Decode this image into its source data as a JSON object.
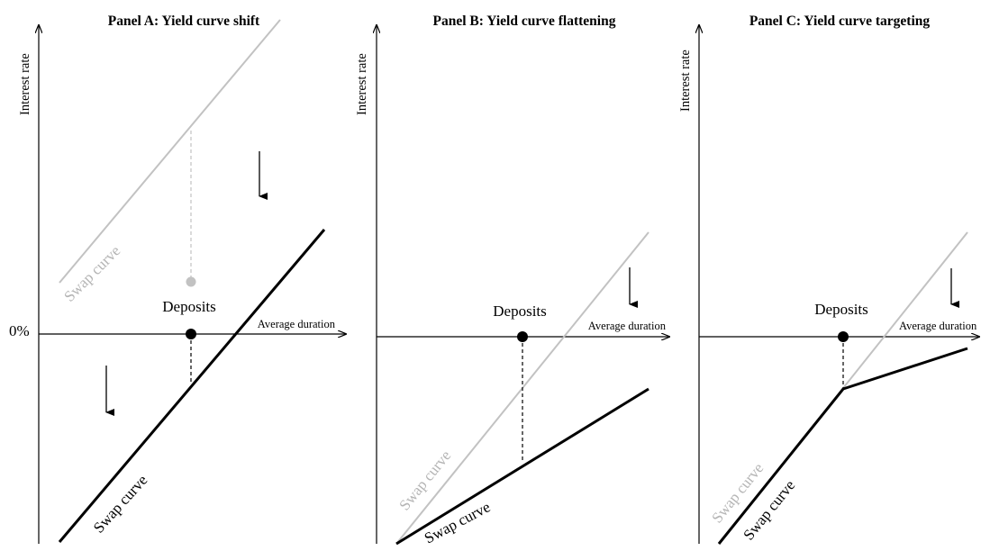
{
  "panels": [
    {
      "title": "Panel A: Yield curve shift",
      "y_axis_label": "Interest rate",
      "x_axis_label": "Average duration",
      "zero_label": "0%",
      "deposits_label": "Deposits",
      "swap_curve_old_label": "Swap curve",
      "swap_curve_new_label": "Swap curve"
    },
    {
      "title": "Panel B: Yield curve flattening",
      "y_axis_label": "Interest rate",
      "x_axis_label": "Average duration",
      "deposits_label": "Deposits",
      "swap_curve_old_label": "Swap curve",
      "swap_curve_new_label": "Swap curve"
    },
    {
      "title": "Panel C: Yield curve targeting",
      "y_axis_label": "Interest rate",
      "x_axis_label": "Average duration",
      "deposits_label": "Deposits",
      "swap_curve_old_label": "Swap curve",
      "swap_curve_new_label": "Swap curve"
    }
  ],
  "colors": {
    "new_curve": "#000000",
    "old_curve": "#c2c2c2"
  }
}
